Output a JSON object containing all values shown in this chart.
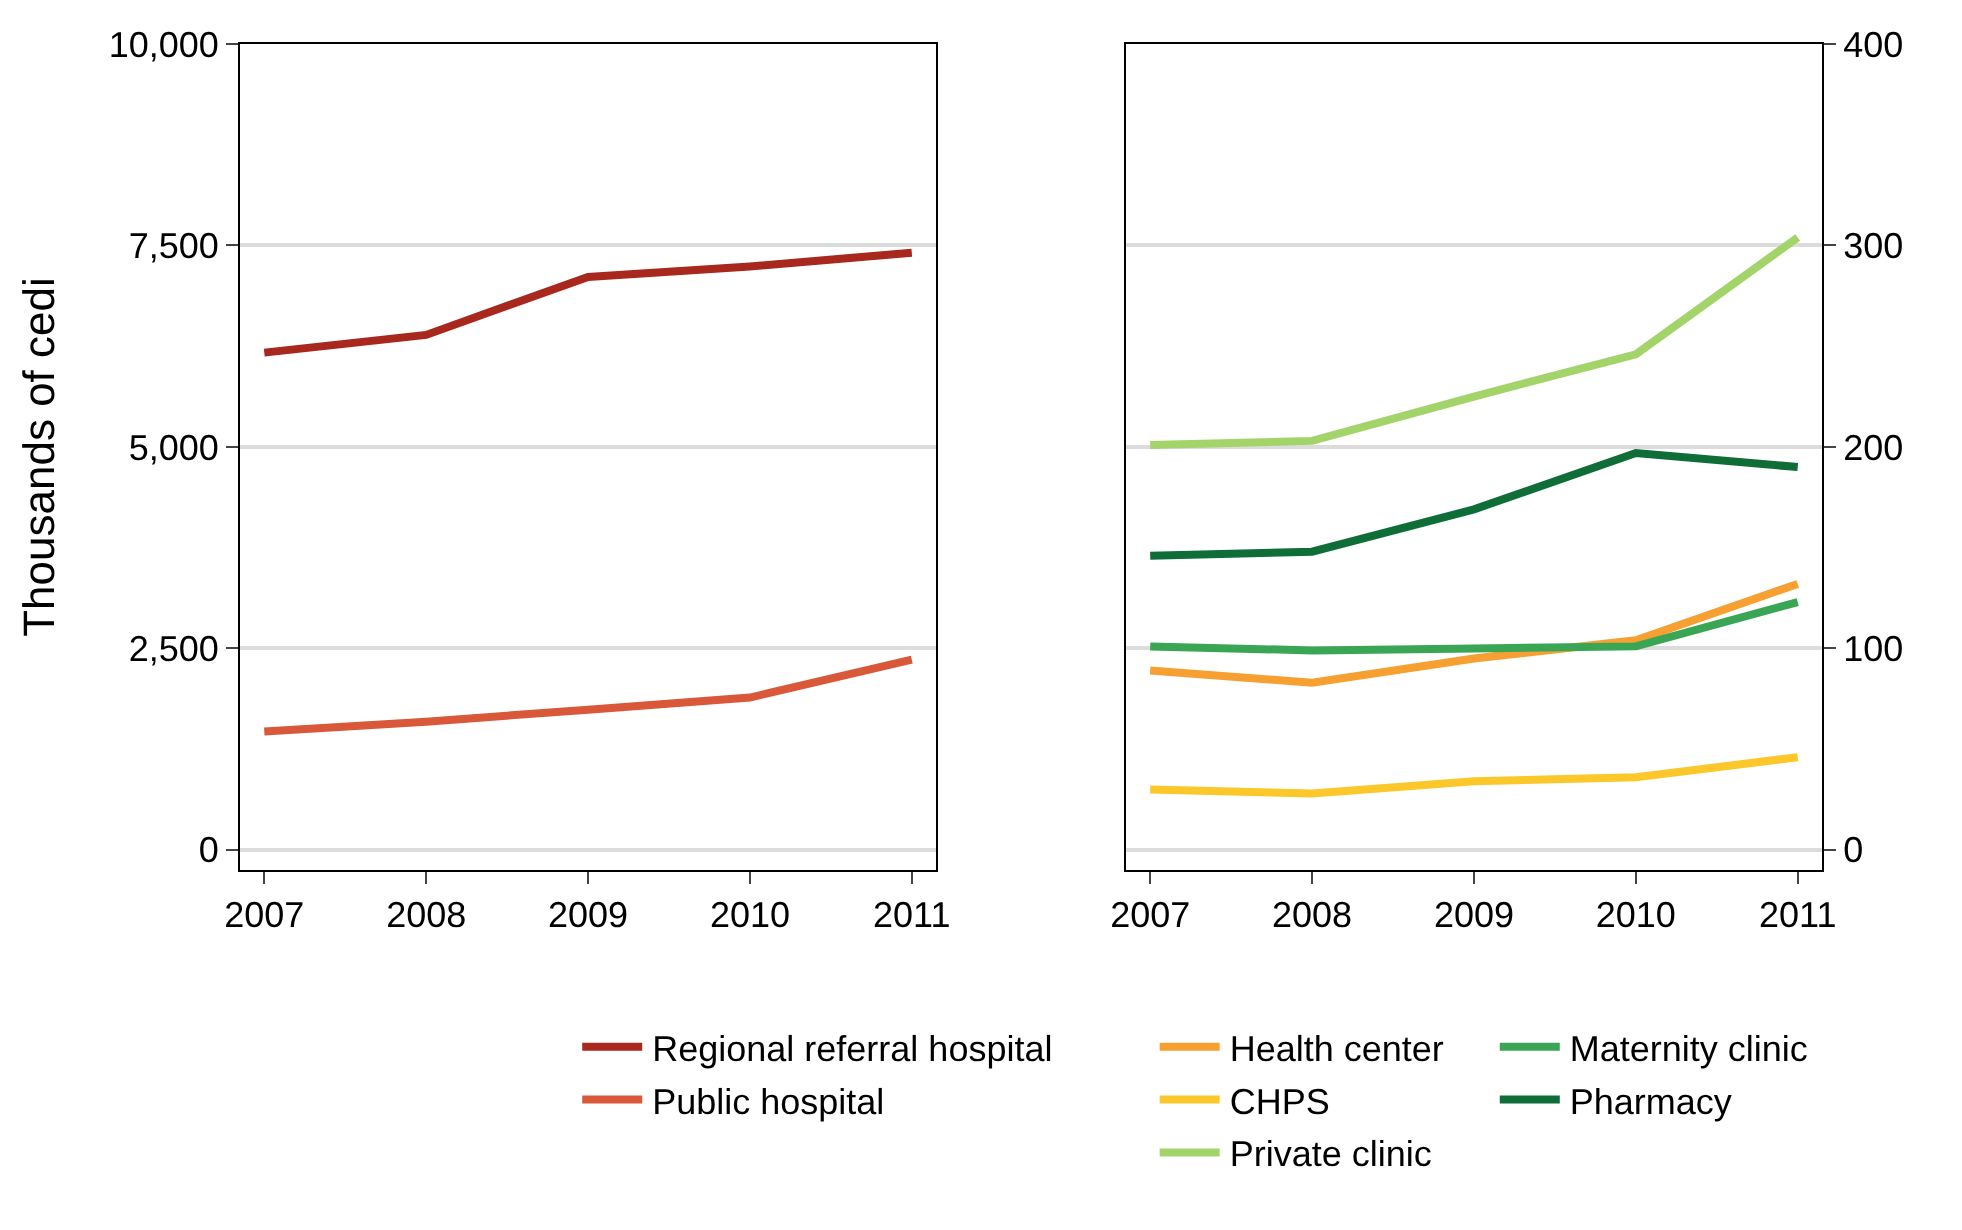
{
  "chart_data": [
    {
      "type": "line",
      "ylabel": "Thousands of cedi",
      "x": [
        2007,
        2008,
        2009,
        2010,
        2011
      ],
      "xlim": [
        2006.85,
        2011.15
      ],
      "xticks": [
        2007,
        2008,
        2009,
        2010,
        2011
      ],
      "ylim": [
        -250,
        10000
      ],
      "yticks": [
        {
          "value": 0,
          "label": "0"
        },
        {
          "value": 2500,
          "label": "2,500"
        },
        {
          "value": 5000,
          "label": "5,000"
        },
        {
          "value": 7500,
          "label": "7,500"
        },
        {
          "value": 10000,
          "label": "10,000"
        }
      ],
      "grid": "y",
      "legend": "bottom",
      "marker": "none",
      "series": [
        {
          "name": "Regional referral hospital",
          "color": "#a8281e",
          "values": [
            6170,
            6390,
            7110,
            7240,
            7410
          ]
        },
        {
          "name": "Public hospital",
          "color": "#d9583a",
          "values": [
            1470,
            1590,
            1740,
            1890,
            2360
          ]
        }
      ]
    },
    {
      "type": "line",
      "x": [
        2007,
        2008,
        2009,
        2010,
        2011
      ],
      "xlim": [
        2006.85,
        2011.15
      ],
      "xticks": [
        2007,
        2008,
        2009,
        2010,
        2011
      ],
      "ylim": [
        -10,
        400
      ],
      "yticks": [
        0,
        100,
        200,
        300,
        400
      ],
      "grid": "y",
      "legend": "bottom",
      "marker": "none",
      "series": [
        {
          "name": "Health center",
          "color": "#f5a031",
          "values": [
            89,
            83,
            95,
            104,
            132
          ]
        },
        {
          "name": "CHPS",
          "color": "#fcc72a",
          "values": [
            30,
            28,
            34,
            36,
            46
          ]
        },
        {
          "name": "Private clinic",
          "color": "#a3d46a",
          "values": [
            201,
            203,
            225,
            246,
            304
          ]
        },
        {
          "name": "Maternity clinic",
          "color": "#3aa655",
          "values": [
            101,
            99,
            100,
            101,
            123
          ]
        },
        {
          "name": "Pharmacy",
          "color": "#0f6d38",
          "values": [
            146,
            148,
            169,
            197,
            190
          ]
        }
      ]
    }
  ]
}
